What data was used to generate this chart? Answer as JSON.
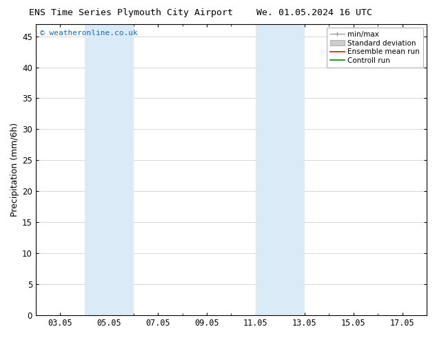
{
  "title_left": "ENS Time Series Plymouth City Airport",
  "title_right": "We. 01.05.2024 16 UTC",
  "ylabel": "Precipitation (mm/6h)",
  "xlabel": "",
  "ylim": [
    0,
    47
  ],
  "yticks": [
    0,
    5,
    10,
    15,
    20,
    25,
    30,
    35,
    40,
    45
  ],
  "xlim": [
    2.0,
    18.0
  ],
  "xtick_labels": [
    "03.05",
    "05.05",
    "07.05",
    "09.05",
    "11.05",
    "13.05",
    "15.05",
    "17.05"
  ],
  "xtick_positions": [
    3,
    5,
    7,
    9,
    11,
    13,
    15,
    17
  ],
  "shaded_regions": [
    {
      "xmin": 4.0,
      "xmax": 6.0,
      "color": "#daeaf7"
    },
    {
      "xmin": 11.0,
      "xmax": 13.0,
      "color": "#daeaf7"
    }
  ],
  "background_color": "#ffffff",
  "plot_bg_color": "#ffffff",
  "grid_color": "#d0d0d0",
  "copyright_text": "© weatheronline.co.uk",
  "copyright_color": "#1a6bb5",
  "legend_labels": [
    "min/max",
    "Standard deviation",
    "Ensemble mean run",
    "Controll run"
  ],
  "title_fontsize": 9.5,
  "tick_fontsize": 8.5,
  "ylabel_fontsize": 9
}
